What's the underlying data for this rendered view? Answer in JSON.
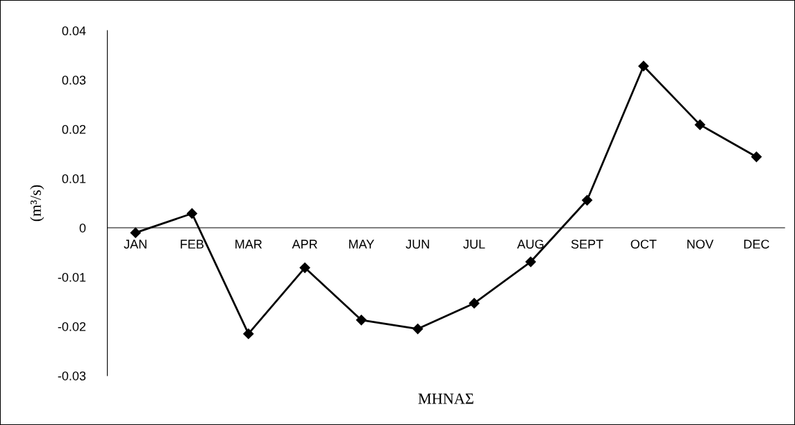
{
  "chart_data": {
    "type": "line",
    "xlabel": "ΜΗΝΑΣ",
    "ylabel": "(m³/s)",
    "categories": [
      "JAN",
      "FEB",
      "MAR",
      "APR",
      "MAY",
      "JUN",
      "JUL",
      "AUG",
      "SEPT",
      "OCT",
      "NOV",
      "DEC"
    ],
    "series": [
      {
        "color": "#000000",
        "values": [
          -0.001,
          0.0029,
          -0.0215,
          -0.0081,
          -0.0187,
          -0.0205,
          -0.0153,
          -0.0069,
          0.0056,
          0.0328,
          0.0209,
          0.0144
        ]
      }
    ],
    "ylim": [
      -0.03,
      0.04
    ],
    "yticks": [
      -0.03,
      -0.02,
      -0.01,
      0,
      0.01,
      0.02,
      0.03,
      0.04
    ],
    "marker": "diamond",
    "line_style": "solid",
    "grid": false,
    "legend": false
  }
}
